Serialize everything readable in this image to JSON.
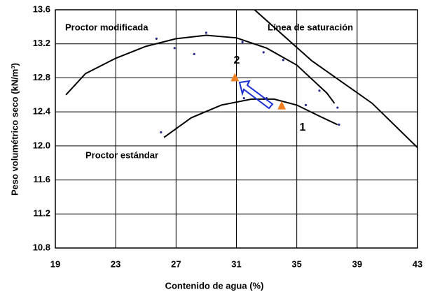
{
  "chart_data": {
    "type": "line",
    "xlabel": "Contenido de agua (%)",
    "ylabel": "Peso volumétrico seco (kN/m³)",
    "xlim": [
      19,
      43
    ],
    "xticks": [
      19,
      23,
      27,
      31,
      35,
      39,
      43
    ],
    "ylim": [
      10.8,
      13.6
    ],
    "yticks": [
      10.8,
      11.2,
      11.6,
      {
        "value": 12,
        "label": "12.0"
      },
      12.4,
      12.8,
      13.2,
      13.6
    ],
    "grid": true,
    "series": [
      {
        "name": "Proctor modificada",
        "kind": "line",
        "color": "#000000",
        "x": [
          19.7,
          21,
          23,
          25,
          27,
          29,
          31,
          33,
          35,
          37,
          37.5
        ],
        "values": [
          12.6,
          12.85,
          13.03,
          13.17,
          13.26,
          13.3,
          13.27,
          13.15,
          12.95,
          12.62,
          12.5
        ]
      },
      {
        "name": "Proctor estándar",
        "kind": "line",
        "color": "#000000",
        "x": [
          26.2,
          28,
          30,
          32,
          33.5,
          35,
          36.5,
          37.7
        ],
        "values": [
          12.1,
          12.33,
          12.48,
          12.55,
          12.55,
          12.48,
          12.35,
          12.25
        ]
      },
      {
        "name": "Línea de saturación",
        "kind": "line",
        "color": "#000000",
        "x": [
          32.2,
          36,
          38,
          40,
          43
        ],
        "values": [
          13.6,
          13.0,
          12.75,
          12.5,
          11.98
        ]
      },
      {
        "kind": "dot",
        "color": "#2a2a8a",
        "x": [
          25.7,
          26.9,
          28.2,
          29,
          31.4,
          32.8,
          34.1,
          36.5,
          37.7,
          26,
          31.5,
          33,
          35.6,
          37.8
        ],
        "values": [
          13.26,
          13.15,
          13.08,
          13.33,
          13.22,
          13.1,
          13.01,
          12.65,
          12.45,
          12.16,
          12.56,
          12.56,
          12.48,
          12.25
        ]
      },
      {
        "kind": "triangle",
        "color": "#f07f22",
        "x": [
          30.9,
          34
        ],
        "values": [
          12.8,
          12.47
        ],
        "labels": [
          "2",
          "1"
        ]
      }
    ]
  }
}
